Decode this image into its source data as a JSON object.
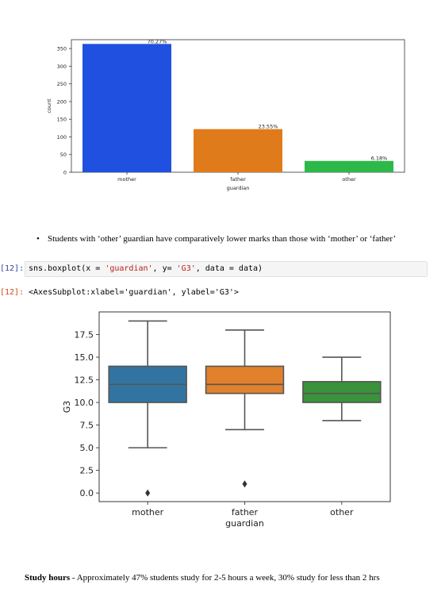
{
  "chart_data": [
    {
      "type": "bar",
      "categories": [
        "mother",
        "father",
        "other"
      ],
      "values": [
        363,
        122,
        32
      ],
      "value_labels": [
        "70.27%",
        "23.55%",
        "6.18%"
      ],
      "xlabel": "guardian",
      "ylabel": "count",
      "ylim": [
        0,
        375
      ],
      "yticks": [
        0,
        50,
        100,
        150,
        200,
        250,
        300,
        350
      ],
      "colors": [
        "#1f50e0",
        "#e07b1c",
        "#2db84a"
      ]
    },
    {
      "type": "boxplot",
      "categories": [
        "mother",
        "father",
        "other"
      ],
      "boxes": [
        {
          "whisker_low": 5,
          "q1": 10,
          "median": 12,
          "q3": 14,
          "whisker_high": 19,
          "outliers": [
            0
          ]
        },
        {
          "whisker_low": 7,
          "q1": 11,
          "median": 12,
          "q3": 14,
          "whisker_high": 18,
          "outliers": [
            1
          ]
        },
        {
          "whisker_low": 8,
          "q1": 10,
          "median": 11,
          "q3": 12.3,
          "whisker_high": 15,
          "outliers": []
        }
      ],
      "xlabel": "guardian",
      "ylabel": "G3",
      "ylim": [
        -0.95,
        20
      ],
      "yticks": [
        "0.0",
        "2.5",
        "5.0",
        "7.5",
        "10.0",
        "12.5",
        "15.0",
        "17.5"
      ],
      "colors": [
        "#3274a1",
        "#e1812c",
        "#3a923a"
      ]
    }
  ],
  "bullet": "Students with ‘other’ guardian have comparatively lower marks than those with ‘mother’ or ‘father’",
  "cell_in": {
    "prompt": "[12]:",
    "code_prefix": "sns.boxplot(x = ",
    "str1": "'guardian'",
    "code_mid": ", y= ",
    "str2": "'G3'",
    "code_suffix": ", data = data)"
  },
  "cell_out": {
    "prompt": "[12]:",
    "text": "<AxesSubplot:xlabel='guardian', ylabel='G3'>"
  },
  "para": {
    "bold": "Study hours",
    "text": " - Approximately 47% students study for 2-5 hours a week, 30% study for less than 2 hrs"
  }
}
